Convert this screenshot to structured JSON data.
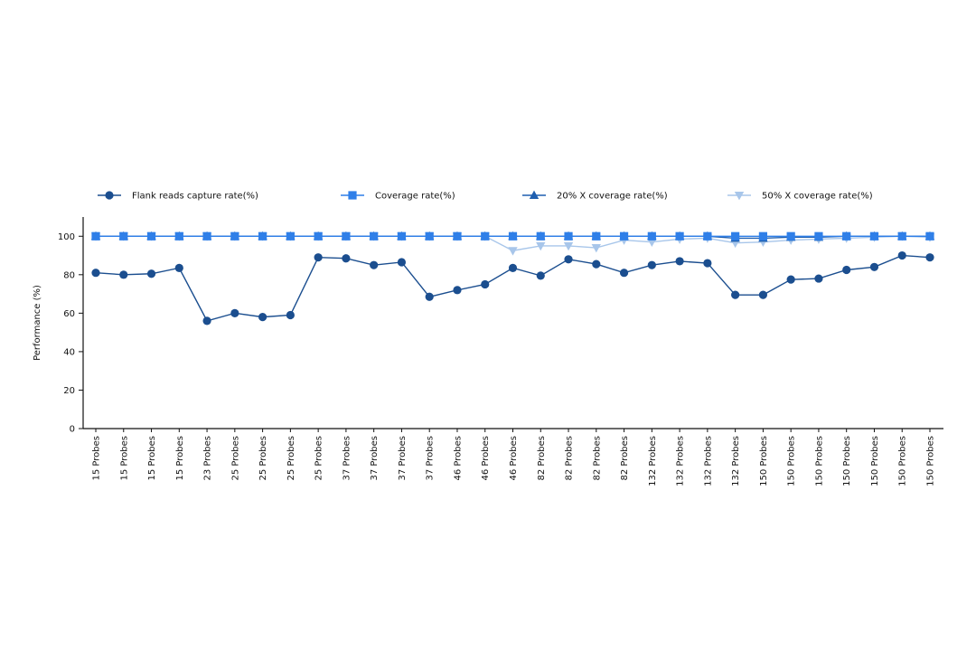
{
  "chart_data": {
    "type": "line",
    "title": "",
    "xlabel": "",
    "ylabel": "Performance (%)",
    "ylim": [
      0,
      110
    ],
    "yticks": [
      0,
      20,
      40,
      60,
      80,
      100
    ],
    "grid": false,
    "legend_position": "top",
    "categories": [
      "15 Probes",
      "15 Probes",
      "15 Probes",
      "15 Probes",
      "23 Probes",
      "25 Probes",
      "25 Probes",
      "25 Probes",
      "25 Probes",
      "37 Probes",
      "37 Probes",
      "37 Probes",
      "37 Probes",
      "46 Probes",
      "46 Probes",
      "46 Probes",
      "82 Probes",
      "82 Probes",
      "82 Probes",
      "82 Probes",
      "132 Probes",
      "132 Probes",
      "132 Probes",
      "132 Probes",
      "150 Probes",
      "150 Probes",
      "150 Probes",
      "150 Probes",
      "150 Probes",
      "150 Probes",
      "150 Probes"
    ],
    "series": [
      {
        "name": "Flank reads capture rate(%)",
        "marker": "circle",
        "color": "#1b4e8f",
        "values": [
          81,
          80,
          80.5,
          83.5,
          56,
          60,
          58,
          59,
          89,
          88.5,
          85,
          86.5,
          68.5,
          72,
          75,
          83.5,
          79.5,
          88,
          85.5,
          81,
          85,
          87,
          86,
          69.5,
          69.5,
          77.5,
          78,
          82.5,
          84,
          90,
          89
        ]
      },
      {
        "name": "Coverage rate(%)",
        "marker": "square",
        "color": "#2f7fe8",
        "values": [
          100,
          100,
          100,
          100,
          100,
          100,
          100,
          100,
          100,
          100,
          100,
          100,
          100,
          100,
          100,
          100,
          100,
          100,
          100,
          100,
          100,
          100,
          100,
          100,
          100,
          100,
          100,
          100,
          100,
          100,
          100
        ]
      },
      {
        "name": "20% X coverage rate(%)",
        "marker": "triangle-up",
        "color": "#1f5fb0",
        "values": [
          100,
          100,
          100,
          100,
          100,
          100,
          100,
          100,
          100,
          100,
          100,
          100,
          100,
          100,
          100,
          100,
          100,
          100,
          100,
          100,
          100,
          100,
          100,
          99,
          99,
          99.5,
          99.5,
          100,
          100,
          100,
          100
        ]
      },
      {
        "name": "50% X coverage rate(%)",
        "marker": "triangle-down",
        "color": "#a8c6ea",
        "values": [
          100,
          100,
          100,
          100,
          100,
          100,
          100,
          100,
          100,
          100,
          100,
          100,
          100,
          100,
          100,
          92.5,
          95,
          95,
          94,
          98,
          97,
          98.5,
          99,
          96.5,
          97,
          98,
          98.5,
          99,
          99.5,
          100,
          99.5
        ]
      }
    ]
  }
}
